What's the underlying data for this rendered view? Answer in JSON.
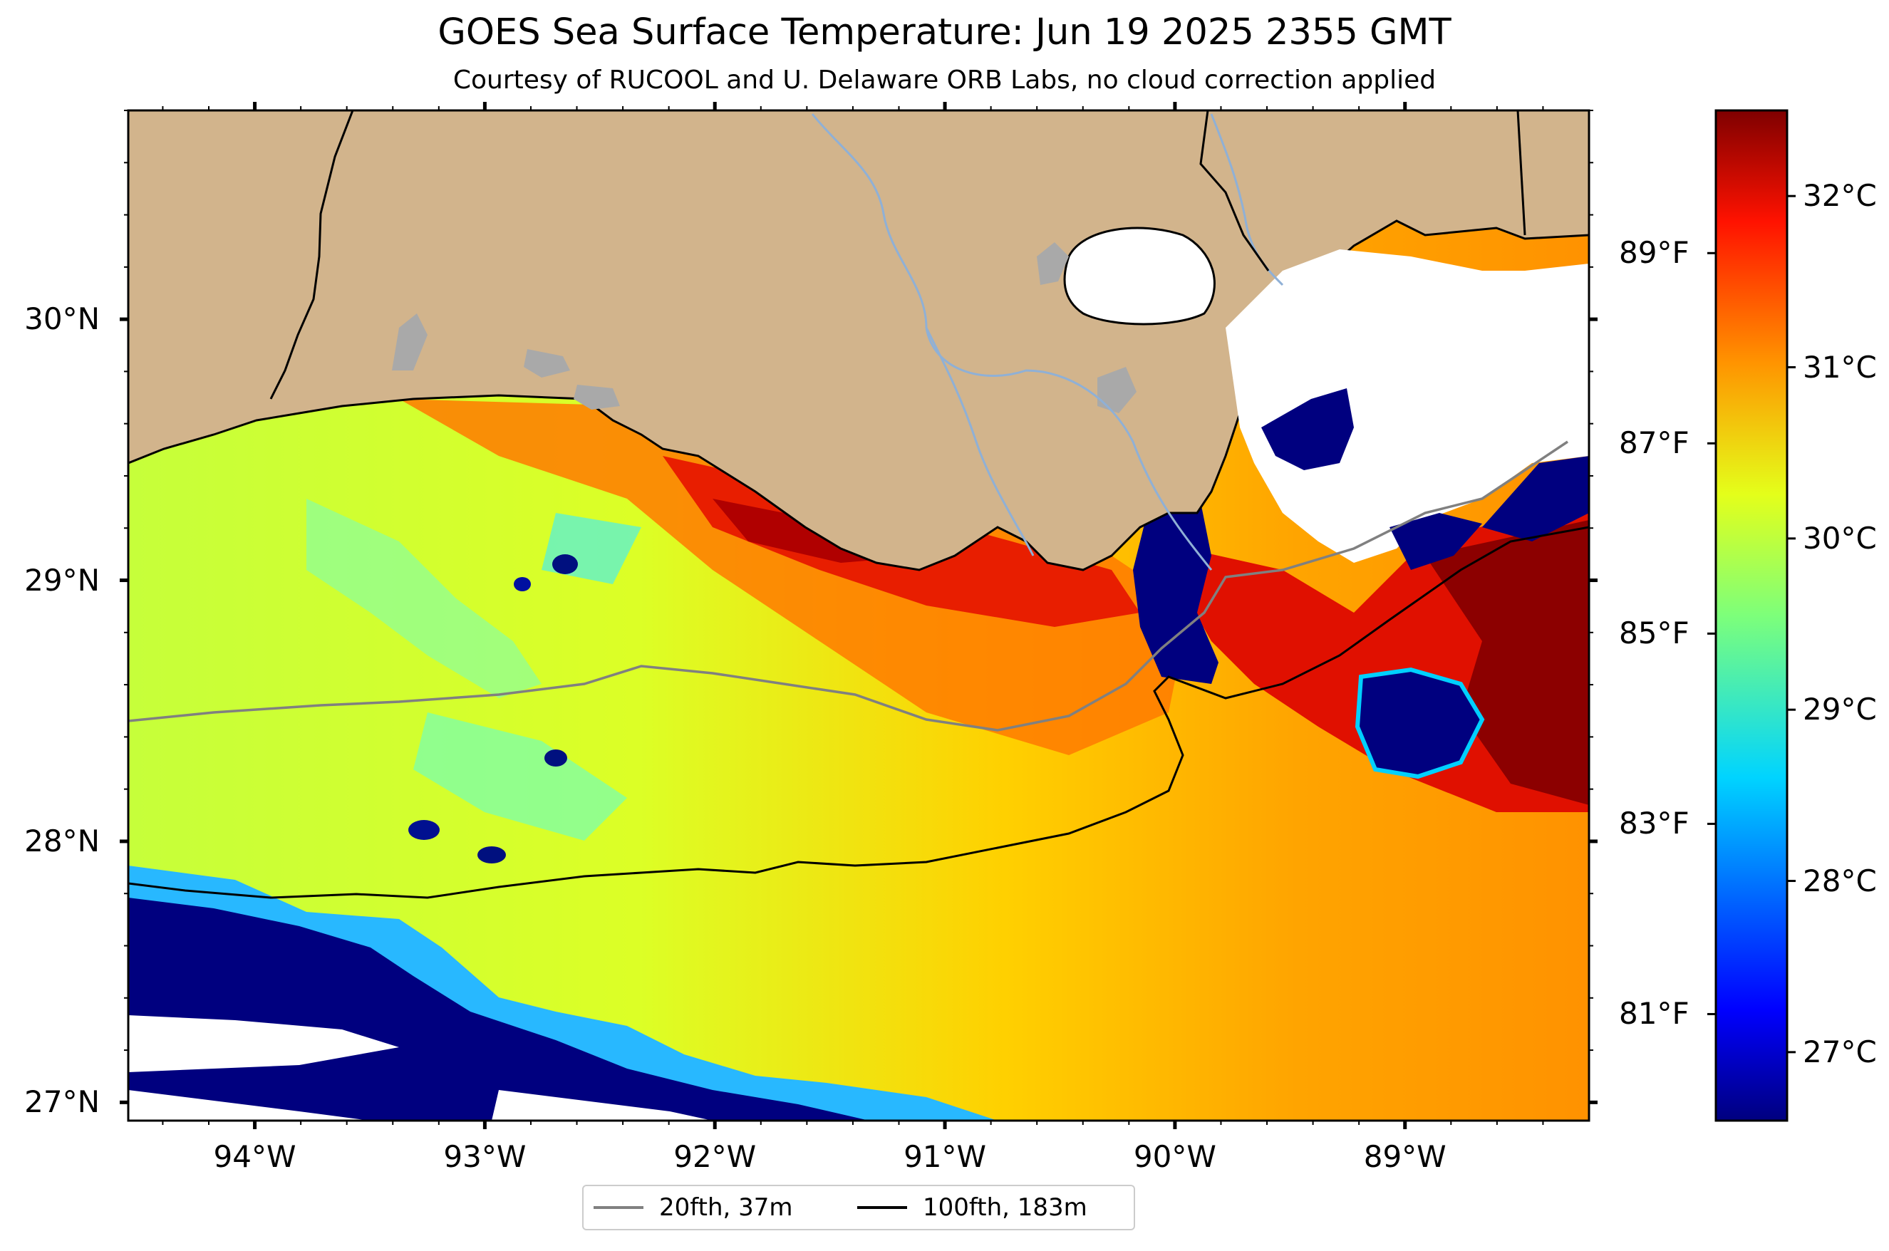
{
  "title": "GOES Sea Surface Temperature: Jun 19 2025 2355 GMT",
  "subtitle": "Courtesy of RUCOOL and U. Delaware ORB Labs, no cloud correction applied",
  "map": {
    "extent_lon": [
      -94.55,
      -88.2
    ],
    "extent_lat": [
      26.93,
      30.8
    ],
    "lat_ticks": [
      {
        "value": 30,
        "label": "30°N"
      },
      {
        "value": 29,
        "label": "29°N"
      },
      {
        "value": 28,
        "label": "28°N"
      },
      {
        "value": 27,
        "label": "27°N"
      }
    ],
    "lon_ticks": [
      {
        "value": -94,
        "label": "94°W"
      },
      {
        "value": -93,
        "label": "93°W"
      },
      {
        "value": -92,
        "label": "92°W"
      },
      {
        "value": -91,
        "label": "91°W"
      },
      {
        "value": -90,
        "label": "90°W"
      },
      {
        "value": -89,
        "label": "89°W"
      }
    ],
    "colors": {
      "land": "#d2b48c",
      "no_data": "#ffffff",
      "rivers": "#8fb0d6",
      "lakes": "#a9a9a9",
      "isobath_20fth": "#808080",
      "isobath_100fth": "#000000"
    }
  },
  "colorbar": {
    "colormap": "jet",
    "range_c": [
      26.6,
      32.5
    ],
    "celsius_ticks": [
      {
        "value": 32,
        "label": "32°C"
      },
      {
        "value": 31,
        "label": "31°C"
      },
      {
        "value": 30,
        "label": "30°C"
      },
      {
        "value": 29,
        "label": "29°C"
      },
      {
        "value": 28,
        "label": "28°C"
      },
      {
        "value": 27,
        "label": "27°C"
      }
    ],
    "fahrenheit_ticks": [
      {
        "value": 89,
        "label": "89°F"
      },
      {
        "value": 87,
        "label": "87°F"
      },
      {
        "value": 85,
        "label": "85°F"
      },
      {
        "value": 83,
        "label": "83°F"
      },
      {
        "value": 81,
        "label": "81°F"
      }
    ]
  },
  "legend": {
    "items": [
      {
        "label": "20fth, 37m",
        "color": "#808080"
      },
      {
        "label": "100fth, 183m",
        "color": "#000000"
      }
    ]
  }
}
